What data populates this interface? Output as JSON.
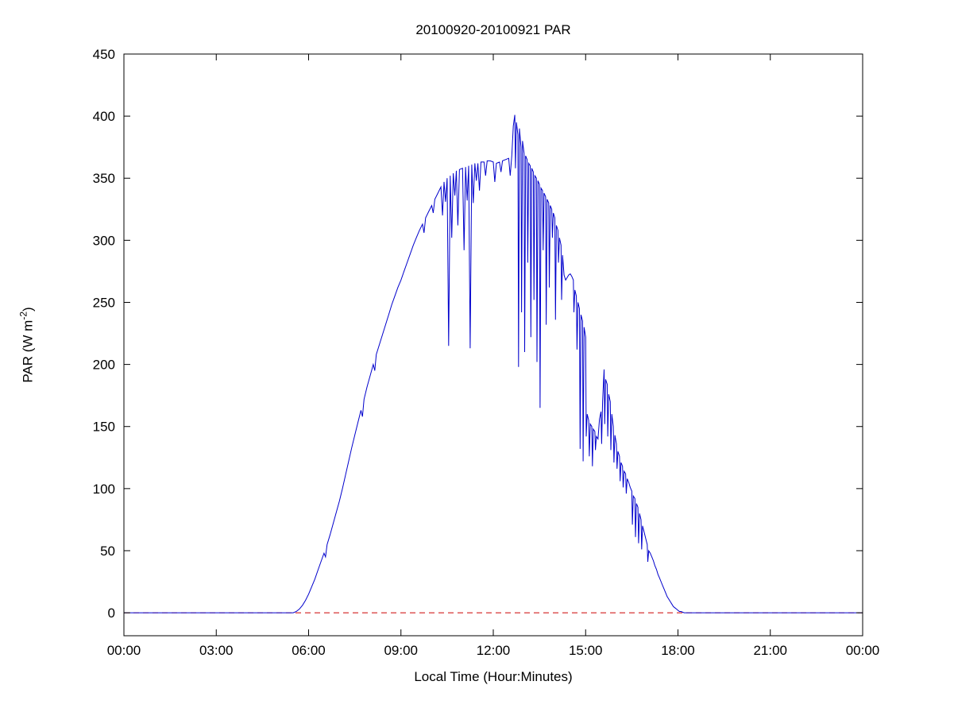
{
  "figure": {
    "title": "20100920-20100921 PAR",
    "xlabel": "Local Time (Hour:Minutes)",
    "ylabel_prefix": "PAR (W m",
    "ylabel_sup": "-2",
    "ylabel_suffix": ")",
    "background_color": "#ffffff",
    "axis_color": "#000000"
  },
  "chart_data": {
    "type": "line",
    "title": "20100920-20100921 PAR",
    "xlabel": "Local Time (Hour:Minutes)",
    "ylabel": "PAR (W m^-2)",
    "xlim": [
      0,
      24
    ],
    "ylim": [
      -18.5,
      450
    ],
    "grid": false,
    "legend": "none",
    "x_ticks": [
      {
        "value": 0,
        "label": "00:00"
      },
      {
        "value": 3,
        "label": "03:00"
      },
      {
        "value": 6,
        "label": "06:00"
      },
      {
        "value": 9,
        "label": "09:00"
      },
      {
        "value": 12,
        "label": "12:00"
      },
      {
        "value": 15,
        "label": "15:00"
      },
      {
        "value": 18,
        "label": "18:00"
      },
      {
        "value": 21,
        "label": "21:00"
      },
      {
        "value": 24,
        "label": "00:00"
      }
    ],
    "y_ticks": [
      0,
      50,
      100,
      150,
      200,
      250,
      300,
      350,
      400,
      450
    ],
    "series": [
      {
        "name": "zero-reference-line",
        "color": "#cc0000",
        "style": "dashed",
        "points": [
          [
            0,
            0
          ],
          [
            24,
            0
          ]
        ]
      },
      {
        "name": "PAR",
        "color": "#0000cc",
        "style": "solid",
        "points": [
          [
            0,
            0
          ],
          [
            1,
            0
          ],
          [
            2,
            0
          ],
          [
            3,
            0
          ],
          [
            4,
            0
          ],
          [
            5,
            0
          ],
          [
            5.4,
            0
          ],
          [
            5.5,
            0
          ],
          [
            5.6,
            1
          ],
          [
            5.7,
            3
          ],
          [
            5.8,
            6
          ],
          [
            5.9,
            10
          ],
          [
            6.0,
            15
          ],
          [
            6.1,
            21
          ],
          [
            6.2,
            27
          ],
          [
            6.3,
            34
          ],
          [
            6.4,
            41
          ],
          [
            6.5,
            48
          ],
          [
            6.55,
            45
          ],
          [
            6.6,
            55
          ],
          [
            6.7,
            63
          ],
          [
            6.8,
            72
          ],
          [
            6.9,
            81
          ],
          [
            7.0,
            90
          ],
          [
            7.1,
            100
          ],
          [
            7.2,
            111
          ],
          [
            7.3,
            122
          ],
          [
            7.4,
            133
          ],
          [
            7.5,
            143
          ],
          [
            7.6,
            153
          ],
          [
            7.7,
            163
          ],
          [
            7.75,
            158
          ],
          [
            7.8,
            172
          ],
          [
            7.9,
            182
          ],
          [
            8.0,
            191
          ],
          [
            8.1,
            200
          ],
          [
            8.15,
            195
          ],
          [
            8.2,
            208
          ],
          [
            8.3,
            216
          ],
          [
            8.4,
            224
          ],
          [
            8.5,
            232
          ],
          [
            8.6,
            240
          ],
          [
            8.7,
            248
          ],
          [
            8.8,
            255
          ],
          [
            8.9,
            262
          ],
          [
            9.0,
            268
          ],
          [
            9.1,
            275
          ],
          [
            9.2,
            282
          ],
          [
            9.3,
            289
          ],
          [
            9.4,
            296
          ],
          [
            9.5,
            302
          ],
          [
            9.6,
            308
          ],
          [
            9.7,
            313
          ],
          [
            9.75,
            306
          ],
          [
            9.8,
            318
          ],
          [
            9.9,
            323
          ],
          [
            10.0,
            328
          ],
          [
            10.05,
            322
          ],
          [
            10.1,
            333
          ],
          [
            10.2,
            338
          ],
          [
            10.3,
            343
          ],
          [
            10.35,
            320
          ],
          [
            10.4,
            347
          ],
          [
            10.45,
            331
          ],
          [
            10.5,
            350
          ],
          [
            10.55,
            215
          ],
          [
            10.6,
            352
          ],
          [
            10.65,
            302
          ],
          [
            10.7,
            354
          ],
          [
            10.75,
            336
          ],
          [
            10.8,
            356
          ],
          [
            10.85,
            312
          ],
          [
            10.9,
            357
          ],
          [
            11.0,
            358
          ],
          [
            11.05,
            292
          ],
          [
            11.1,
            359
          ],
          [
            11.15,
            332
          ],
          [
            11.2,
            360
          ],
          [
            11.25,
            213
          ],
          [
            11.3,
            361
          ],
          [
            11.35,
            330
          ],
          [
            11.4,
            362
          ],
          [
            11.45,
            348
          ],
          [
            11.5,
            362
          ],
          [
            11.55,
            340
          ],
          [
            11.6,
            363
          ],
          [
            11.7,
            363
          ],
          [
            11.75,
            352
          ],
          [
            11.8,
            364
          ],
          [
            11.9,
            364
          ],
          [
            12.0,
            363
          ],
          [
            12.05,
            347
          ],
          [
            12.1,
            362
          ],
          [
            12.2,
            363
          ],
          [
            12.25,
            355
          ],
          [
            12.3,
            364
          ],
          [
            12.4,
            365
          ],
          [
            12.5,
            366
          ],
          [
            12.55,
            352
          ],
          [
            12.6,
            368
          ],
          [
            12.65,
            392
          ],
          [
            12.7,
            401
          ],
          [
            12.72,
            358
          ],
          [
            12.75,
            395
          ],
          [
            12.8,
            385
          ],
          [
            12.82,
            198
          ],
          [
            12.85,
            390
          ],
          [
            12.9,
            375
          ],
          [
            12.92,
            242
          ],
          [
            12.95,
            380
          ],
          [
            13.0,
            370
          ],
          [
            13.02,
            210
          ],
          [
            13.05,
            368
          ],
          [
            13.1,
            365
          ],
          [
            13.12,
            282
          ],
          [
            13.15,
            362
          ],
          [
            13.2,
            360
          ],
          [
            13.22,
            222
          ],
          [
            13.25,
            358
          ],
          [
            13.3,
            355
          ],
          [
            13.32,
            252
          ],
          [
            13.35,
            352
          ],
          [
            13.4,
            350
          ],
          [
            13.42,
            202
          ],
          [
            13.45,
            348
          ],
          [
            13.5,
            345
          ],
          [
            13.52,
            165
          ],
          [
            13.55,
            342
          ],
          [
            13.6,
            340
          ],
          [
            13.62,
            292
          ],
          [
            13.65,
            338
          ],
          [
            13.7,
            335
          ],
          [
            13.72,
            232
          ],
          [
            13.75,
            333
          ],
          [
            13.8,
            330
          ],
          [
            13.82,
            262
          ],
          [
            13.85,
            328
          ],
          [
            13.9,
            325
          ],
          [
            13.92,
            302
          ],
          [
            13.95,
            322
          ],
          [
            14.0,
            318
          ],
          [
            14.02,
            236
          ],
          [
            14.05,
            312
          ],
          [
            14.1,
            308
          ],
          [
            14.12,
            282
          ],
          [
            14.15,
            302
          ],
          [
            14.2,
            296
          ],
          [
            14.22,
            252
          ],
          [
            14.25,
            288
          ],
          [
            14.3,
            272
          ],
          [
            14.35,
            268
          ],
          [
            14.4,
            270
          ],
          [
            14.45,
            272
          ],
          [
            14.5,
            273
          ],
          [
            14.55,
            271
          ],
          [
            14.6,
            268
          ],
          [
            14.62,
            242
          ],
          [
            14.65,
            260
          ],
          [
            14.7,
            255
          ],
          [
            14.72,
            212
          ],
          [
            14.75,
            250
          ],
          [
            14.8,
            245
          ],
          [
            14.82,
            132
          ],
          [
            14.85,
            240
          ],
          [
            14.9,
            235
          ],
          [
            14.92,
            122
          ],
          [
            14.95,
            230
          ],
          [
            15.0,
            222
          ],
          [
            15.02,
            142
          ],
          [
            15.05,
            160
          ],
          [
            15.1,
            155
          ],
          [
            15.12,
            126
          ],
          [
            15.15,
            152
          ],
          [
            15.2,
            150
          ],
          [
            15.22,
            118
          ],
          [
            15.25,
            148
          ],
          [
            15.3,
            146
          ],
          [
            15.32,
            131
          ],
          [
            15.35,
            142
          ],
          [
            15.4,
            140
          ],
          [
            15.45,
            156
          ],
          [
            15.5,
            162
          ],
          [
            15.52,
            136
          ],
          [
            15.55,
            170
          ],
          [
            15.6,
            196
          ],
          [
            15.62,
            152
          ],
          [
            15.65,
            188
          ],
          [
            15.7,
            184
          ],
          [
            15.72,
            142
          ],
          [
            15.75,
            176
          ],
          [
            15.8,
            170
          ],
          [
            15.82,
            131
          ],
          [
            15.85,
            160
          ],
          [
            15.9,
            150
          ],
          [
            15.92,
            121
          ],
          [
            15.95,
            143
          ],
          [
            16.0,
            136
          ],
          [
            16.02,
            116
          ],
          [
            16.05,
            130
          ],
          [
            16.1,
            126
          ],
          [
            16.12,
            106
          ],
          [
            16.15,
            121
          ],
          [
            16.2,
            118
          ],
          [
            16.22,
            101
          ],
          [
            16.25,
            114
          ],
          [
            16.3,
            112
          ],
          [
            16.32,
            96
          ],
          [
            16.35,
            108
          ],
          [
            16.4,
            105
          ],
          [
            16.45,
            101
          ],
          [
            16.5,
            98
          ],
          [
            16.52,
            71
          ],
          [
            16.55,
            94
          ],
          [
            16.6,
            92
          ],
          [
            16.62,
            61
          ],
          [
            16.65,
            88
          ],
          [
            16.7,
            85
          ],
          [
            16.72,
            56
          ],
          [
            16.75,
            80
          ],
          [
            16.8,
            75
          ],
          [
            16.82,
            51
          ],
          [
            16.85,
            70
          ],
          [
            16.9,
            65
          ],
          [
            16.95,
            60
          ],
          [
            17.0,
            55
          ],
          [
            17.02,
            41
          ],
          [
            17.05,
            50
          ],
          [
            17.1,
            48
          ],
          [
            17.15,
            45
          ],
          [
            17.2,
            42
          ],
          [
            17.25,
            38
          ],
          [
            17.3,
            35
          ],
          [
            17.35,
            31
          ],
          [
            17.4,
            28
          ],
          [
            17.45,
            25
          ],
          [
            17.5,
            22
          ],
          [
            17.55,
            19
          ],
          [
            17.6,
            16
          ],
          [
            17.65,
            13
          ],
          [
            17.7,
            11
          ],
          [
            17.75,
            9
          ],
          [
            17.8,
            7
          ],
          [
            17.85,
            5
          ],
          [
            17.9,
            4
          ],
          [
            17.95,
            3
          ],
          [
            18.0,
            2
          ],
          [
            18.05,
            1
          ],
          [
            18.1,
            1
          ],
          [
            18.2,
            0
          ],
          [
            19,
            0
          ],
          [
            20,
            0
          ],
          [
            21,
            0
          ],
          [
            22,
            0
          ],
          [
            23,
            0
          ],
          [
            24,
            0
          ]
        ]
      }
    ]
  }
}
